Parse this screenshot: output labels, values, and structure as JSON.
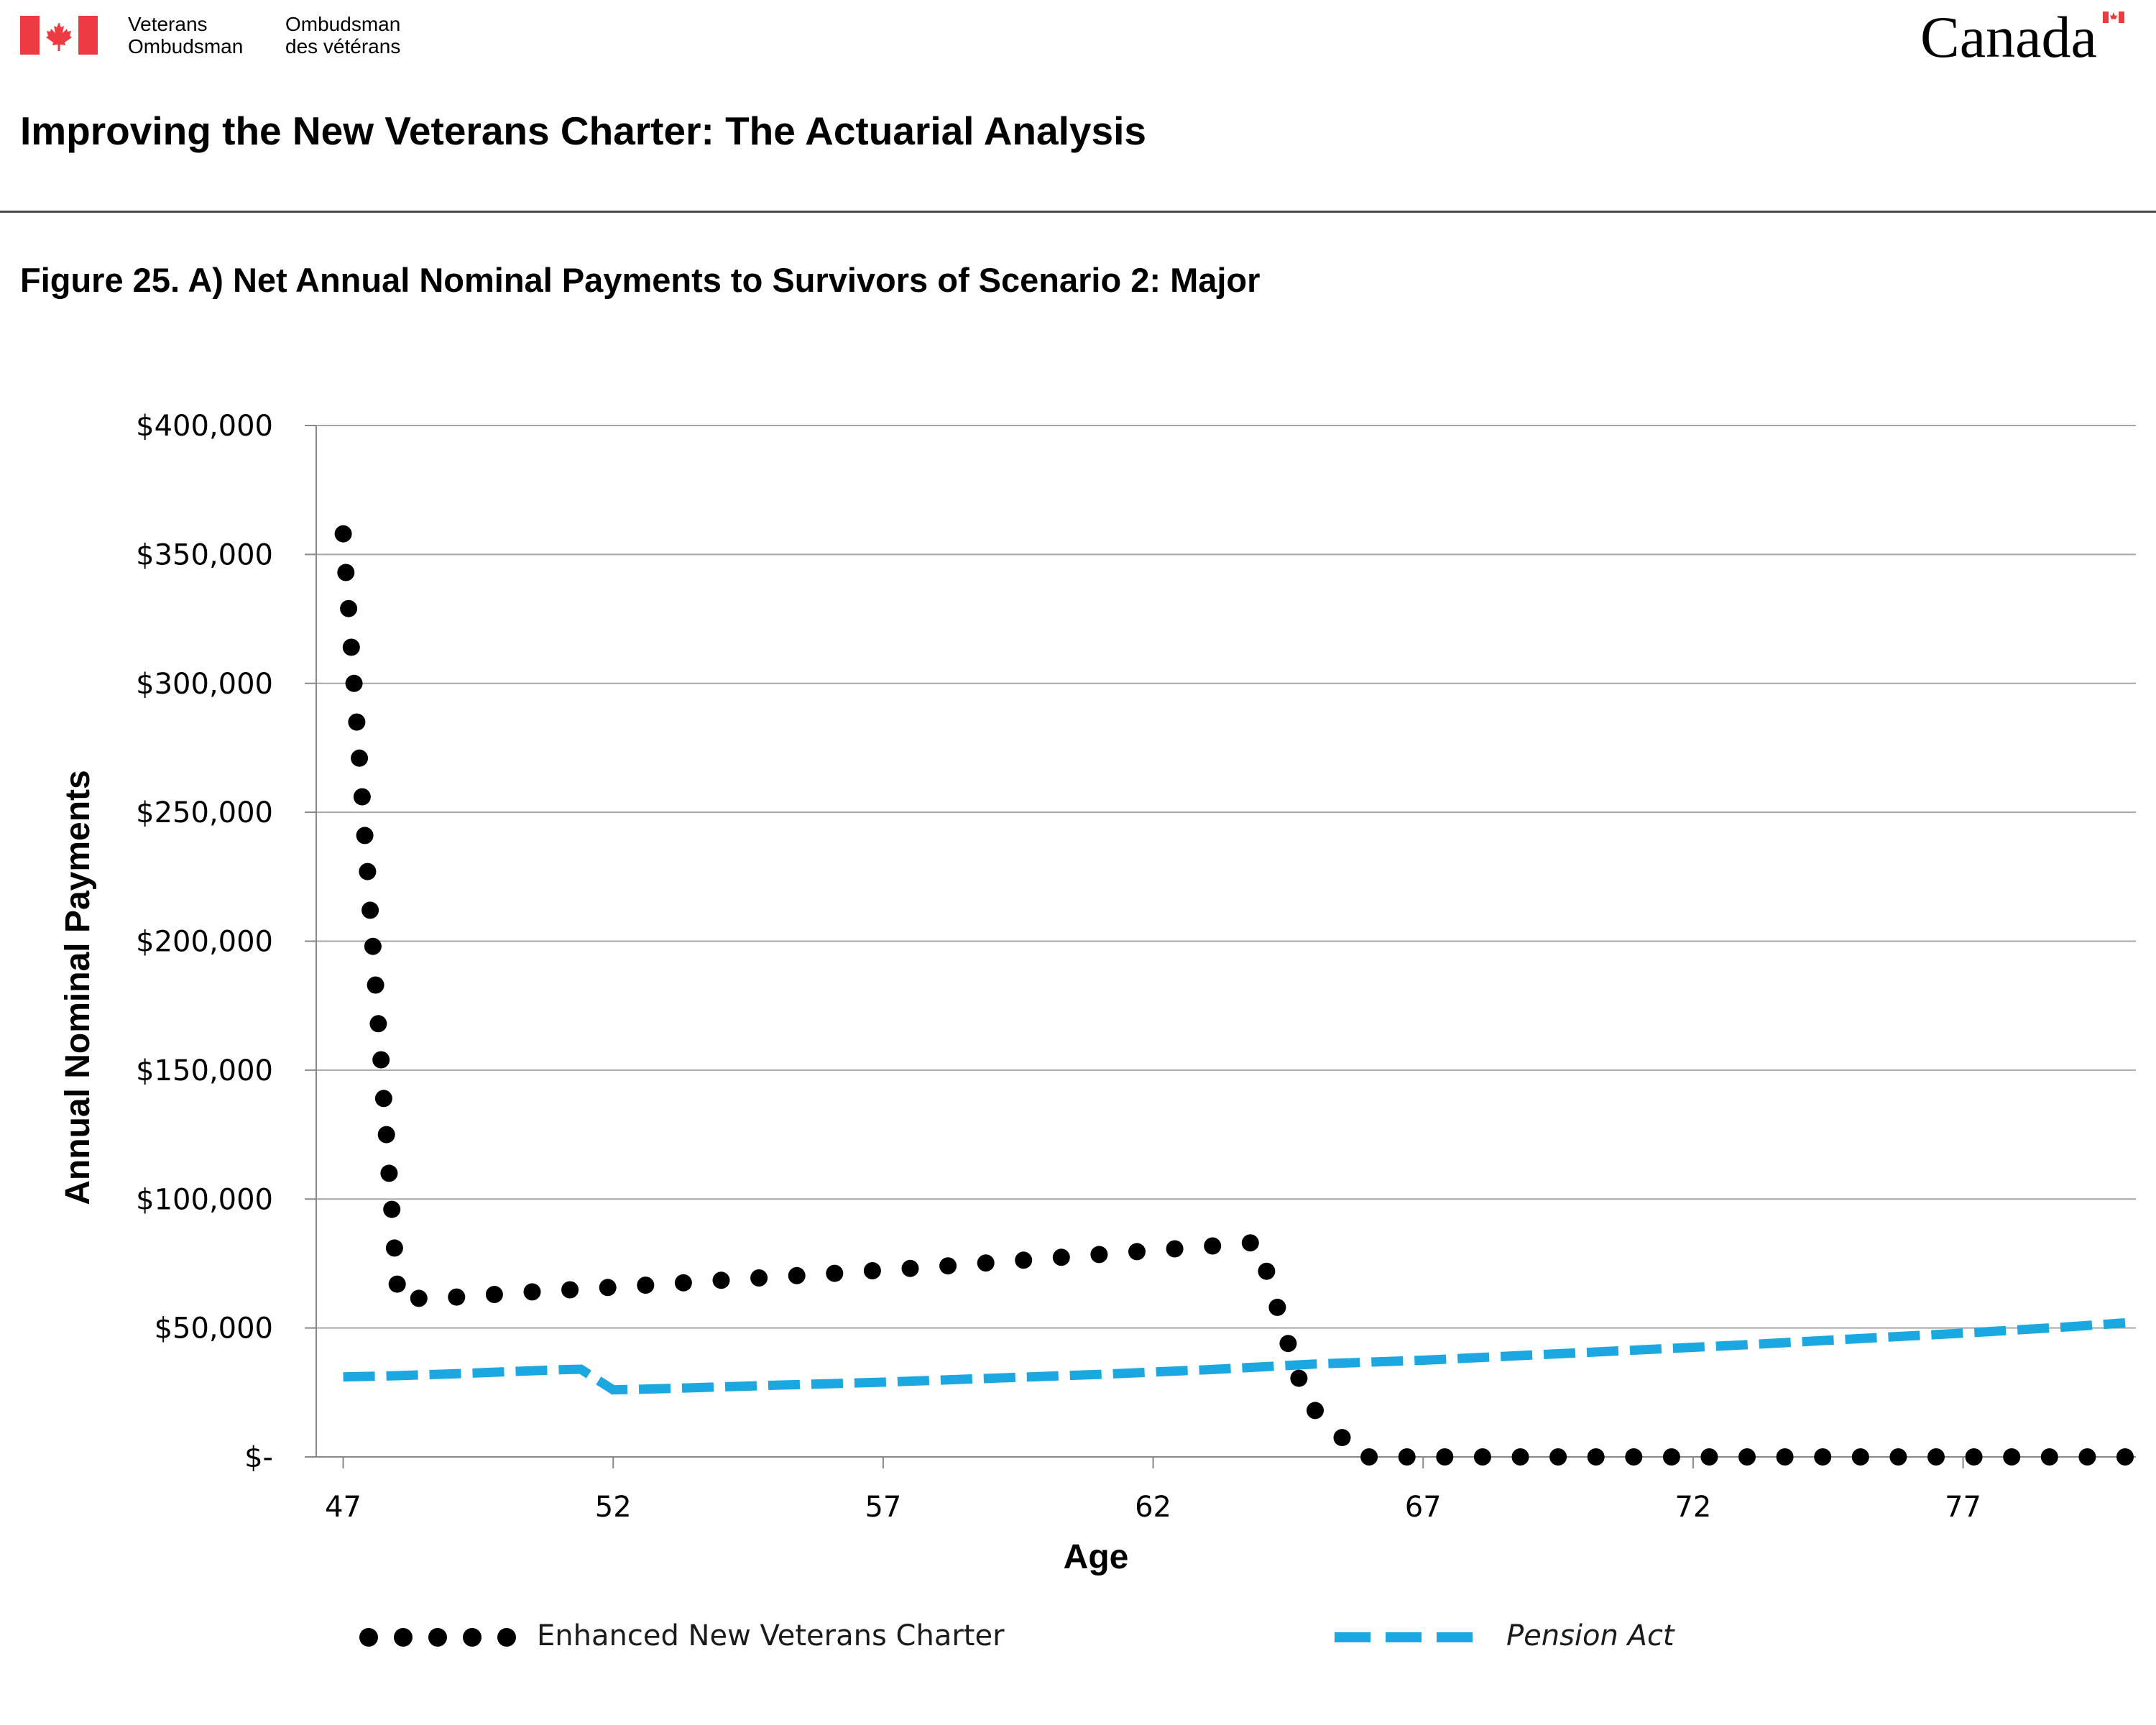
{
  "header": {
    "org_en_line1": "Veterans",
    "org_en_line2": "Ombudsman",
    "org_fr_line1": "Ombudsman",
    "org_fr_line2": "des vétérans",
    "wordmark": "Canada",
    "report_title": "Improving the New Veterans Charter: The Actuarial Analysis"
  },
  "colors": {
    "flag_red": "#ee3a43",
    "series_enhanced": "#000000",
    "series_pension": "#1ba8e0",
    "grid": "#a6a6a6",
    "rule": "#4a4a4a"
  },
  "chart_data": {
    "type": "line",
    "title": "Figure 25. A) Net Annual Nominal Payments to Survivors of Scenario 2: Major",
    "xlabel": "Age",
    "ylabel": "Annual Nominal Payments",
    "xlim": [
      46.5,
      80.2
    ],
    "ylim": [
      0,
      400000
    ],
    "x_ticks": [
      47,
      52,
      57,
      62,
      67,
      72,
      77
    ],
    "x_tick_labels": [
      "47",
      "52",
      "57",
      "62",
      "67",
      "72",
      "77"
    ],
    "y_ticks": [
      0,
      50000,
      100000,
      150000,
      200000,
      250000,
      300000,
      350000,
      400000
    ],
    "y_tick_labels": [
      "$-",
      "$50,000",
      "$100,000",
      "$150,000",
      "$200,000",
      "$250,000",
      "$300,000",
      "$350,000",
      "$400,000"
    ],
    "grid": "horizontal",
    "legend_position": "bottom",
    "series": [
      {
        "name": "Enhanced New Veterans Charter",
        "style": "dotted",
        "color": "#000000",
        "points": [
          [
            47.0,
            358000
          ],
          [
            47.05,
            343000
          ],
          [
            47.1,
            329000
          ],
          [
            47.15,
            314000
          ],
          [
            47.2,
            300000
          ],
          [
            47.25,
            285000
          ],
          [
            47.3,
            271000
          ],
          [
            47.35,
            256000
          ],
          [
            47.4,
            241000
          ],
          [
            47.45,
            227000
          ],
          [
            47.5,
            212000
          ],
          [
            47.55,
            198000
          ],
          [
            47.6,
            183000
          ],
          [
            47.65,
            168000
          ],
          [
            47.7,
            154000
          ],
          [
            47.75,
            139000
          ],
          [
            47.8,
            125000
          ],
          [
            47.85,
            110000
          ],
          [
            47.9,
            96000
          ],
          [
            47.95,
            81000
          ],
          [
            48.0,
            67000
          ],
          [
            48.4,
            61500
          ],
          [
            49.1,
            62000
          ],
          [
            49.8,
            63000
          ],
          [
            50.5,
            64000
          ],
          [
            51.2,
            64800
          ],
          [
            51.9,
            65700
          ],
          [
            52.6,
            66600
          ],
          [
            53.3,
            67500
          ],
          [
            54.0,
            68500
          ],
          [
            54.7,
            69400
          ],
          [
            55.4,
            70300
          ],
          [
            56.1,
            71200
          ],
          [
            56.8,
            72200
          ],
          [
            57.5,
            73100
          ],
          [
            58.2,
            74100
          ],
          [
            58.9,
            75200
          ],
          [
            59.6,
            76300
          ],
          [
            60.3,
            77400
          ],
          [
            61.0,
            78500
          ],
          [
            61.7,
            79600
          ],
          [
            62.4,
            80700
          ],
          [
            63.1,
            81800
          ],
          [
            63.8,
            83000
          ],
          [
            64.1,
            72000
          ],
          [
            64.3,
            58000
          ],
          [
            64.5,
            44000
          ],
          [
            64.7,
            30500
          ],
          [
            65.0,
            18000
          ],
          [
            65.5,
            7500
          ],
          [
            66.0,
            0
          ],
          [
            66.7,
            0
          ],
          [
            67.4,
            0
          ],
          [
            68.1,
            0
          ],
          [
            68.8,
            0
          ],
          [
            69.5,
            0
          ],
          [
            70.2,
            0
          ],
          [
            70.9,
            0
          ],
          [
            71.6,
            0
          ],
          [
            72.3,
            0
          ],
          [
            73.0,
            0
          ],
          [
            73.7,
            0
          ],
          [
            74.4,
            0
          ],
          [
            75.1,
            0
          ],
          [
            75.8,
            0
          ],
          [
            76.5,
            0
          ],
          [
            77.2,
            0
          ],
          [
            77.9,
            0
          ],
          [
            78.6,
            0
          ],
          [
            79.3,
            0
          ],
          [
            80.0,
            0
          ]
        ]
      },
      {
        "name": "Pension Act",
        "style": "dashed",
        "color": "#1ba8e0",
        "points": [
          [
            47.0,
            31000
          ],
          [
            48.0,
            31500
          ],
          [
            49.0,
            32200
          ],
          [
            50.0,
            33000
          ],
          [
            51.0,
            33800
          ],
          [
            51.4,
            34000
          ],
          [
            52.0,
            26000
          ],
          [
            53.0,
            26500
          ],
          [
            55.0,
            27800
          ],
          [
            57.0,
            29000
          ],
          [
            59.0,
            30500
          ],
          [
            61.0,
            32000
          ],
          [
            63.0,
            33800
          ],
          [
            65.0,
            36000
          ],
          [
            67.0,
            37500
          ],
          [
            69.0,
            39500
          ],
          [
            71.0,
            41500
          ],
          [
            73.0,
            43500
          ],
          [
            75.0,
            45800
          ],
          [
            77.0,
            48000
          ],
          [
            79.0,
            50500
          ],
          [
            80.0,
            52000
          ]
        ]
      }
    ]
  }
}
